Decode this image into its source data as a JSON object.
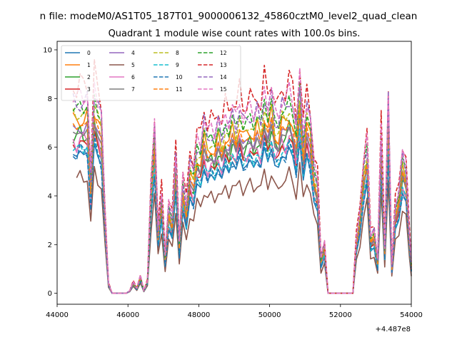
{
  "figure": {
    "suptitle": "n file: modeM0/AS1T05_187T01_9000006132_45860cztM0_level2_quad_clean",
    "offset_label": "+4.487e8"
  },
  "chart_data": {
    "type": "line",
    "title": "Quadrant 1 module wise count rates with 100.0s bins.",
    "xlabel": "",
    "ylabel": "",
    "x_offset": 448700000,
    "xlim": [
      44000,
      54000
    ],
    "ylim": [
      -0.45,
      10.35
    ],
    "x_ticks": [
      44000,
      46000,
      48000,
      50000,
      52000,
      54000
    ],
    "x_tick_labels": [
      "44000",
      "46000",
      "48000",
      "50000",
      "52000",
      "54000"
    ],
    "y_ticks": [
      0,
      2,
      4,
      6,
      8,
      10
    ],
    "y_tick_labels": [
      "0",
      "2",
      "4",
      "6",
      "8",
      "10"
    ],
    "grid": false,
    "legend_placement": "top-left",
    "legend_columns": 4,
    "series": [
      {
        "name": "0",
        "color": "#1f77b4",
        "dash": false,
        "scale": 0.75
      },
      {
        "name": "1",
        "color": "#ff7f0e",
        "dash": false,
        "scale": 0.93
      },
      {
        "name": "2",
        "color": "#2ca02c",
        "dash": false,
        "scale": 0.85
      },
      {
        "name": "3",
        "color": "#d62728",
        "dash": false,
        "scale": 0.8
      },
      {
        "name": "4",
        "color": "#9467bd",
        "dash": false,
        "scale": 0.88
      },
      {
        "name": "5",
        "color": "#8c564b",
        "dash": false,
        "scale": 0.62
      },
      {
        "name": "6",
        "color": "#e377c2",
        "dash": false,
        "scale": 0.82
      },
      {
        "name": "7",
        "color": "#7f7f7f",
        "dash": false,
        "scale": 0.86
      },
      {
        "name": "8",
        "color": "#bcbd22",
        "dash": true,
        "scale": 0.96
      },
      {
        "name": "9",
        "color": "#17becf",
        "dash": true,
        "scale": 0.78
      },
      {
        "name": "10",
        "color": "#1f77b4",
        "dash": true,
        "scale": 0.76
      },
      {
        "name": "11",
        "color": "#ff7f0e",
        "dash": true,
        "scale": 0.9
      },
      {
        "name": "12",
        "color": "#2ca02c",
        "dash": true,
        "scale": 1.0
      },
      {
        "name": "13",
        "color": "#d62728",
        "dash": true,
        "scale": 1.12
      },
      {
        "name": "14",
        "color": "#9467bd",
        "dash": true,
        "scale": 1.02
      },
      {
        "name": "15",
        "color": "#e377c2",
        "dash": true,
        "scale": 1.06
      }
    ],
    "base_profile": {
      "x": [
        44450,
        44550,
        44650,
        44750,
        44850,
        44950,
        45050,
        45150,
        45250,
        45350,
        45450,
        45550,
        45650,
        45750,
        45850,
        45950,
        46050,
        46150,
        46250,
        46350,
        46450,
        46550,
        46650,
        46750,
        46850,
        46950,
        47050,
        47150,
        47250,
        47350,
        47450,
        47550,
        47650,
        47750,
        47850,
        47950,
        48050,
        48150,
        48250,
        48350,
        48450,
        48550,
        48650,
        48750,
        48850,
        48950,
        49050,
        49150,
        49250,
        49350,
        49450,
        49550,
        49650,
        49750,
        49850,
        49950,
        50050,
        50150,
        50250,
        50350,
        50450,
        50550,
        50650,
        50750,
        50850,
        50950,
        51050,
        51150,
        51250,
        51350,
        51450,
        51550,
        51650,
        51750,
        51850,
        51950,
        52050,
        52150,
        52250,
        52350,
        52450,
        52550,
        52650,
        52750,
        52850,
        52950,
        53050,
        53150,
        53250,
        53350,
        53450,
        53550,
        53650,
        53750,
        53850,
        53950,
        54000
      ],
      "y": [
        7.6,
        7.5,
        7.8,
        7.6,
        7.7,
        4.6,
        8.2,
        7.5,
        7.0,
        3.2,
        0.4,
        0.0,
        0.0,
        0.0,
        0.0,
        0.0,
        0.1,
        0.45,
        0.2,
        0.7,
        0.1,
        0.5,
        4.2,
        6.6,
        2.5,
        4.0,
        1.5,
        3.5,
        3.0,
        5.5,
        2.0,
        4.5,
        3.5,
        5.2,
        4.8,
        6.0,
        5.8,
        6.8,
        6.2,
        6.5,
        6.2,
        6.8,
        6.3,
        7.0,
        6.6,
        7.2,
        6.8,
        7.5,
        6.8,
        7.0,
        7.3,
        6.9,
        7.3,
        6.9,
        8.0,
        7.2,
        7.9,
        7.0,
        6.9,
        7.5,
        7.4,
        8.0,
        7.5,
        6.5,
        8.4,
        6.2,
        7.5,
        6.8,
        5.0,
        4.5,
        1.4,
        2.0,
        0.0,
        0.0,
        0.0,
        0.0,
        0.0,
        0.0,
        0.0,
        0.0,
        2.2,
        3.2,
        5.0,
        6.0,
        2.3,
        2.5,
        1.3,
        6.5,
        1.8,
        7.7,
        1.1,
        3.5,
        4.0,
        5.5,
        5.0,
        2.3,
        1.2
      ]
    },
    "series_variation": [
      0.0,
      0.06,
      -0.05,
      0.03,
      -0.04,
      0.05,
      -0.06,
      0.02,
      0.04,
      -0.03,
      0.05,
      -0.02,
      0.03,
      -0.05,
      0.06,
      -0.04
    ]
  }
}
